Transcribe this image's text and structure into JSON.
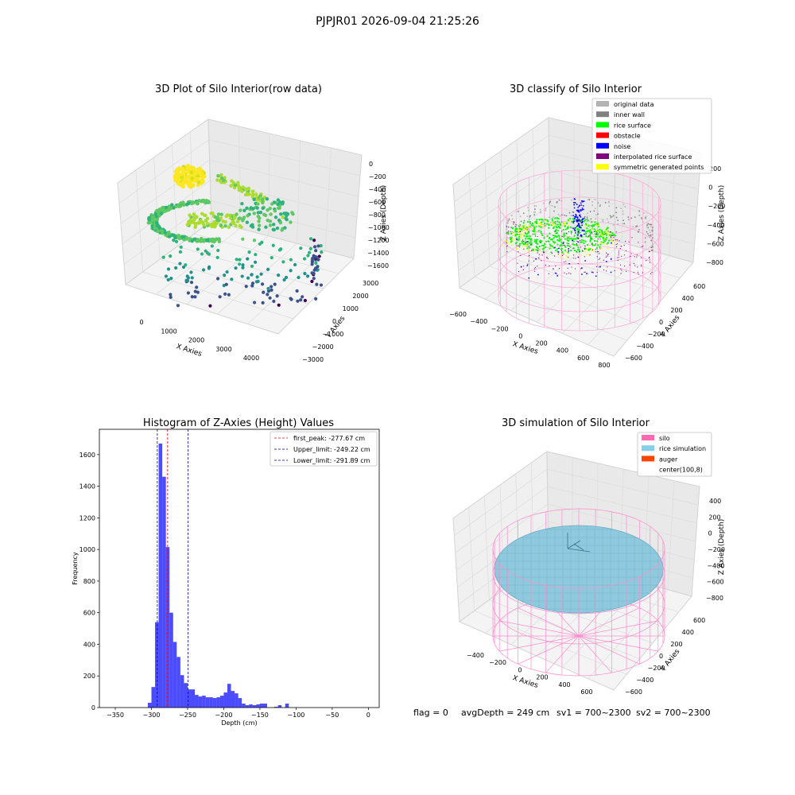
{
  "suptitle": "PJPJR01 2026-09-04 21:25:26",
  "footer": {
    "flag": "flag = 0",
    "avg_depth": "avgDepth = 249 cm",
    "sv1": "sv1 = 700~2300",
    "sv2": "sv2 = 700~2300"
  },
  "chart_data": [
    {
      "type": "scatter",
      "title": "3D Plot of Silo Interior(row data)",
      "xlabel": "X Axies",
      "ylabel": "Y Axies",
      "zlabel": "Z Axies (Depth)",
      "x_ticks": [
        "0",
        "1000",
        "2000",
        "3000",
        "4000"
      ],
      "y_ticks": [
        "−3000",
        "−2000",
        "−1000",
        "0",
        "1000",
        "2000",
        "3000"
      ],
      "z_ticks": [
        "0",
        "−200",
        "−400",
        "−600",
        "−800",
        "−1000",
        "−1200",
        "−1400",
        "−1600"
      ],
      "colormap": "viridis"
    },
    {
      "type": "scatter",
      "title": "3D classify of Silo Interior",
      "xlabel": "X Axies",
      "ylabel": "Y Axies",
      "zlabel": "Z Axies (Depth)",
      "x_ticks": [
        "−600",
        "−400",
        "−200",
        "0",
        "200",
        "400",
        "600",
        "800"
      ],
      "y_ticks": [
        "−600",
        "−400",
        "−200",
        "0",
        "200",
        "400",
        "600"
      ],
      "z_ticks": [
        "200",
        "0",
        "−200",
        "−400",
        "−600",
        "−800"
      ],
      "legend_position": "top-right",
      "legend": [
        {
          "label": "original data",
          "color": "#b3b3b3"
        },
        {
          "label": "inner wall",
          "color": "#808080"
        },
        {
          "label": "rice surface",
          "color": "#00ff00"
        },
        {
          "label": "obstacle",
          "color": "#ff0000"
        },
        {
          "label": "noise",
          "color": "#0000ff"
        },
        {
          "label": "interpolated rice surface",
          "color": "#800080"
        },
        {
          "label": "symmetric generated points",
          "color": "#ffff00"
        }
      ]
    },
    {
      "type": "bar",
      "title": "Histogram of Z-Axies (Height) Values",
      "xlabel": "Depth (cm)",
      "ylabel": "Frequency",
      "xlim": [
        -372,
        15
      ],
      "ylim": [
        0,
        1760
      ],
      "x_ticks": [
        -350,
        -300,
        -250,
        -200,
        -150,
        -100,
        -50,
        0
      ],
      "y_ticks": [
        0,
        200,
        400,
        600,
        800,
        1000,
        1200,
        1400,
        1600
      ],
      "bin_width": 5,
      "bar_color": "#0000ff",
      "bins": [
        {
          "start": -305,
          "count": 30
        },
        {
          "start": -300,
          "count": 130
        },
        {
          "start": -295,
          "count": 540
        },
        {
          "start": -290,
          "count": 1670
        },
        {
          "start": -285,
          "count": 1460
        },
        {
          "start": -280,
          "count": 1015
        },
        {
          "start": -275,
          "count": 600
        },
        {
          "start": -270,
          "count": 415
        },
        {
          "start": -265,
          "count": 320
        },
        {
          "start": -260,
          "count": 205
        },
        {
          "start": -255,
          "count": 155
        },
        {
          "start": -250,
          "count": 115
        },
        {
          "start": -245,
          "count": 115
        },
        {
          "start": -240,
          "count": 80
        },
        {
          "start": -235,
          "count": 70
        },
        {
          "start": -230,
          "count": 75
        },
        {
          "start": -225,
          "count": 65
        },
        {
          "start": -220,
          "count": 65
        },
        {
          "start": -215,
          "count": 60
        },
        {
          "start": -210,
          "count": 65
        },
        {
          "start": -205,
          "count": 75
        },
        {
          "start": -200,
          "count": 95
        },
        {
          "start": -195,
          "count": 150
        },
        {
          "start": -190,
          "count": 105
        },
        {
          "start": -185,
          "count": 90
        },
        {
          "start": -180,
          "count": 60
        },
        {
          "start": -175,
          "count": 25
        },
        {
          "start": -170,
          "count": 15
        },
        {
          "start": -165,
          "count": 20
        },
        {
          "start": -160,
          "count": 15
        },
        {
          "start": -155,
          "count": 20
        },
        {
          "start": -150,
          "count": 25
        },
        {
          "start": -145,
          "count": 25
        },
        {
          "start": -130,
          "count": 5
        },
        {
          "start": -125,
          "count": 15
        },
        {
          "start": -115,
          "count": 25
        }
      ],
      "lines": [
        {
          "label": "first_peak: -277.67 cm",
          "x": -277.67,
          "color": "#ff0000"
        },
        {
          "label": "Upper_limit: -249.22 cm",
          "x": -249.22,
          "color": "#0000aa"
        },
        {
          "label": "Lower_limit: -291.89 cm",
          "x": -291.89,
          "color": "#0000aa"
        }
      ],
      "legend_position": "top-right"
    },
    {
      "type": "scatter",
      "title": "3D simulation of Silo Interior",
      "xlabel": "X Axies",
      "ylabel": "Y Axies",
      "zlabel": "Z Axies (Depth)",
      "x_ticks": [
        "−400",
        "−200",
        "0",
        "200",
        "400",
        "600"
      ],
      "y_ticks": [
        "−600",
        "−400",
        "−200",
        "0",
        "200",
        "400",
        "600"
      ],
      "z_ticks": [
        "400",
        "200",
        "0",
        "−200",
        "−400",
        "−600",
        "−800"
      ],
      "legend_position": "top-right",
      "legend": [
        {
          "label": "silo",
          "color": "#ff69b4"
        },
        {
          "label": "rice simulation",
          "color": "#87ceeb"
        },
        {
          "label": "auger",
          "color": "#ff4500"
        },
        {
          "label": "center(100,8)",
          "color": "#ffffff"
        }
      ]
    }
  ]
}
